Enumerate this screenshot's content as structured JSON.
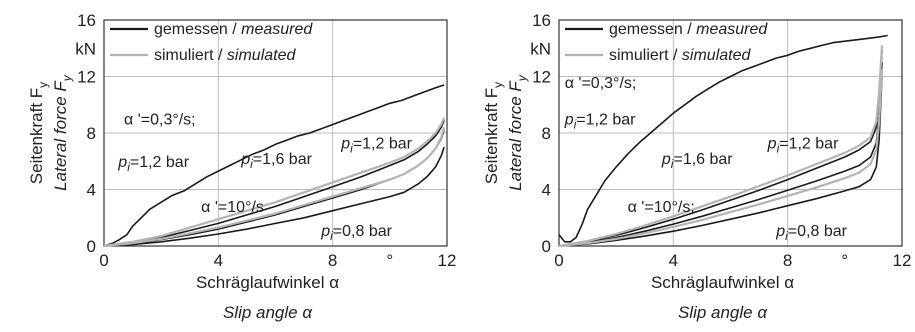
{
  "chart_data": [
    {
      "type": "line",
      "xlim": [
        0,
        12
      ],
      "ylim": [
        0,
        16
      ],
      "xticks": [
        "0",
        "4",
        "8",
        "12"
      ],
      "yticks": [
        "0",
        "4",
        "8",
        "12",
        "16"
      ],
      "x_unit": "°",
      "y_unit": "kN",
      "ylabel": "Seitenkraft F",
      "ylabel_sub": "y",
      "ylabel_en": "Lateral force F",
      "ylabel_en_sub": "y",
      "xlabel": "Schräglaufwinkel α",
      "xlabel_en": "Slip angle α",
      "grid": true,
      "legend_position": "top-left",
      "legend": [
        {
          "de": "gemessen / ",
          "en": "measured",
          "color": "#1a1a1a"
        },
        {
          "de": "simuliert / ",
          "en": "simulated",
          "color": "#b4b4b4"
        }
      ],
      "annotations": [
        {
          "text": "α '=0,3°/s;",
          "x": 0.7,
          "y": 8.6
        },
        {
          "text": "p",
          "sub": "i",
          "after": "=1,2 bar",
          "x": 0.5,
          "y": 5.6
        },
        {
          "text": "p",
          "sub": "i",
          "after": "=1,6 bar",
          "x": 4.8,
          "y": 5.8
        },
        {
          "text": "p",
          "sub": "i",
          "after": "=1,2 bar",
          "x": 8.3,
          "y": 6.9
        },
        {
          "text": "α '=10°/s",
          "x": 3.4,
          "y": 2.4
        },
        {
          "text": "p",
          "sub": "i",
          "after": "=0,8 bar",
          "x": 7.6,
          "y": 0.7
        }
      ],
      "series": [
        {
          "color": "#1a1a1a",
          "x": [
            0,
            0.3,
            0.5,
            0.8,
            1,
            1.3,
            1.6,
            2,
            2.4,
            2.8,
            3.2,
            3.6,
            4,
            4.4,
            4.8,
            5.2,
            5.6,
            6,
            6.4,
            6.8,
            7.2,
            7.6,
            8,
            8.4,
            8.8,
            9.2,
            9.6,
            10,
            10.4,
            10.8,
            11.2,
            11.6,
            11.9
          ],
          "y": [
            0,
            0.2,
            0.4,
            0.8,
            1.4,
            2,
            2.6,
            3.1,
            3.6,
            3.9,
            4.4,
            4.9,
            5.3,
            5.7,
            6.1,
            6.5,
            6.8,
            7.2,
            7.5,
            7.8,
            8,
            8.3,
            8.6,
            8.9,
            9.2,
            9.5,
            9.8,
            10.1,
            10.3,
            10.6,
            10.9,
            11.2,
            11.4
          ]
        },
        {
          "color": "#1a1a1a",
          "x": [
            0,
            1,
            2,
            3,
            4,
            5,
            6,
            7,
            8,
            9,
            10,
            10.5,
            11,
            11.3,
            11.6,
            11.8,
            11.9
          ],
          "y": [
            0,
            0.1,
            0.3,
            0.55,
            0.85,
            1.2,
            1.6,
            2,
            2.5,
            3,
            3.5,
            3.8,
            4.4,
            4.9,
            5.6,
            6.4,
            7
          ]
        },
        {
          "color": "#1a1a1a",
          "x": [
            0,
            1,
            2,
            3,
            4,
            5,
            6,
            7,
            8,
            9,
            10,
            10.5,
            11,
            11.3,
            11.6,
            11.8,
            11.9
          ],
          "y": [
            0,
            0.15,
            0.45,
            0.8,
            1.2,
            1.7,
            2.2,
            2.8,
            3.4,
            4,
            4.7,
            5.1,
            5.7,
            6.2,
            6.9,
            7.6,
            8.2
          ]
        },
        {
          "color": "#1a1a1a",
          "x": [
            0,
            1,
            2,
            3,
            4,
            5,
            6,
            7,
            8,
            9,
            10,
            10.5,
            11,
            11.3,
            11.6,
            11.8,
            11.9
          ],
          "y": [
            0,
            0.2,
            0.6,
            1.1,
            1.6,
            2.2,
            2.8,
            3.5,
            4.2,
            4.9,
            5.7,
            6.1,
            6.7,
            7.2,
            7.8,
            8.4,
            8.9
          ]
        },
        {
          "color": "#b4b4b4",
          "x": [
            0,
            1,
            2,
            3,
            4,
            5,
            6,
            7,
            8,
            9,
            10,
            10.5,
            11,
            11.3,
            11.6,
            11.8,
            11.9
          ],
          "y": [
            0,
            0.2,
            0.5,
            0.9,
            1.3,
            1.8,
            2.3,
            2.9,
            3.5,
            4.1,
            4.7,
            5.1,
            5.7,
            6.2,
            6.9,
            7.7,
            8.4
          ]
        },
        {
          "color": "#b4b4b4",
          "x": [
            0,
            1,
            2,
            3,
            4,
            5,
            6,
            7,
            8,
            9,
            10,
            10.5,
            11,
            11.3,
            11.6,
            11.8,
            11.9
          ],
          "y": [
            0,
            0.3,
            0.7,
            1.3,
            1.9,
            2.5,
            3.1,
            3.8,
            4.5,
            5.2,
            5.9,
            6.3,
            6.9,
            7.4,
            8,
            8.6,
            9.1
          ]
        }
      ]
    },
    {
      "type": "line",
      "xlim": [
        0,
        12
      ],
      "ylim": [
        0,
        16
      ],
      "xticks": [
        "0",
        "4",
        "8",
        "12"
      ],
      "yticks": [
        "0",
        "4",
        "8",
        "12",
        "16"
      ],
      "x_unit": "°",
      "y_unit": "kN",
      "ylabel": "Seitenkraft F",
      "ylabel_sub": "y",
      "ylabel_en": "Lateral force F",
      "ylabel_en_sub": "y",
      "xlabel": "Schräglaufwinkel α",
      "xlabel_en": "Slip angle α",
      "grid": true,
      "legend_position": "top-left",
      "legend": [
        {
          "de": "gemessen / ",
          "en": "measured",
          "color": "#1a1a1a"
        },
        {
          "de": "simuliert / ",
          "en": "simulated",
          "color": "#b4b4b4"
        }
      ],
      "annotations": [
        {
          "text": "α '=0,3°/s;",
          "x": 0.2,
          "y": 11.2
        },
        {
          "text": "p",
          "sub": "i",
          "after": "=1,2 bar",
          "x": 0.2,
          "y": 8.6
        },
        {
          "text": "p",
          "sub": "i",
          "after": "=1,6 bar",
          "x": 3.6,
          "y": 5.8
        },
        {
          "text": "p",
          "sub": "i",
          "after": "=1,2 bar",
          "x": 7.3,
          "y": 6.9
        },
        {
          "text": "α '=10°/s;",
          "x": 2.4,
          "y": 2.4
        },
        {
          "text": "p",
          "sub": "i",
          "after": "=0,8 bar",
          "x": 7.6,
          "y": 0.7
        }
      ],
      "series": [
        {
          "color": "#1a1a1a",
          "x": [
            0,
            0.2,
            0.4,
            0.6,
            0.8,
            1,
            1.3,
            1.6,
            2,
            2.4,
            2.8,
            3.2,
            3.6,
            4,
            4.4,
            4.8,
            5.2,
            5.6,
            6,
            6.4,
            6.8,
            7.2,
            7.6,
            8,
            8.4,
            8.8,
            9.2,
            9.6,
            10,
            10.4,
            10.8,
            11.2,
            11.5
          ],
          "y": [
            0.8,
            0.3,
            0.3,
            0.6,
            1.5,
            2.6,
            3.6,
            4.6,
            5.6,
            6.5,
            7.3,
            8,
            8.7,
            9.4,
            10,
            10.6,
            11.1,
            11.6,
            12,
            12.4,
            12.7,
            13,
            13.3,
            13.5,
            13.8,
            14,
            14.2,
            14.4,
            14.5,
            14.6,
            14.7,
            14.8,
            14.9
          ]
        },
        {
          "color": "#1a1a1a",
          "x": [
            0,
            1,
            2,
            3,
            4,
            5,
            6,
            7,
            8,
            9,
            10,
            10.5,
            10.9,
            11.1,
            11.2,
            11.3
          ],
          "y": [
            0,
            0.15,
            0.4,
            0.7,
            1.05,
            1.45,
            1.9,
            2.35,
            2.85,
            3.35,
            3.9,
            4.2,
            4.7,
            5.6,
            7.5,
            12
          ]
        },
        {
          "color": "#1a1a1a",
          "x": [
            0,
            1,
            2,
            3,
            4,
            5,
            6,
            7,
            8,
            9,
            10,
            10.5,
            10.9,
            11.1,
            11.2,
            11.3
          ],
          "y": [
            0,
            0.25,
            0.6,
            1.05,
            1.55,
            2.1,
            2.7,
            3.3,
            3.95,
            4.6,
            5.3,
            5.7,
            6.3,
            7.3,
            9.2,
            13
          ]
        },
        {
          "color": "#1a1a1a",
          "x": [
            0,
            1,
            2,
            3,
            4,
            5,
            6,
            7,
            8,
            9,
            10,
            10.5,
            10.9,
            11.1,
            11.2,
            11.3
          ],
          "y": [
            0,
            0.3,
            0.75,
            1.3,
            1.9,
            2.55,
            3.25,
            3.95,
            4.7,
            5.5,
            6.3,
            6.8,
            7.4,
            8.4,
            10.4,
            13.8
          ]
        },
        {
          "color": "#b4b4b4",
          "x": [
            0,
            1,
            2,
            3,
            4,
            5,
            6,
            7,
            8,
            9,
            10,
            10.5,
            10.9,
            11.1,
            11.2,
            11.3
          ],
          "y": [
            0,
            0.2,
            0.5,
            0.9,
            1.35,
            1.85,
            2.4,
            2.95,
            3.55,
            4.15,
            4.8,
            5.2,
            5.8,
            6.8,
            8.8,
            12.5
          ]
        },
        {
          "color": "#b4b4b4",
          "x": [
            0,
            1,
            2,
            3,
            4,
            5,
            6,
            7,
            8,
            9,
            10,
            10.5,
            10.9,
            11.1,
            11.2,
            11.3
          ],
          "y": [
            0,
            0.35,
            0.85,
            1.45,
            2.1,
            2.8,
            3.5,
            4.25,
            5,
            5.8,
            6.6,
            7.1,
            7.7,
            8.8,
            10.9,
            14.2
          ]
        }
      ]
    }
  ]
}
